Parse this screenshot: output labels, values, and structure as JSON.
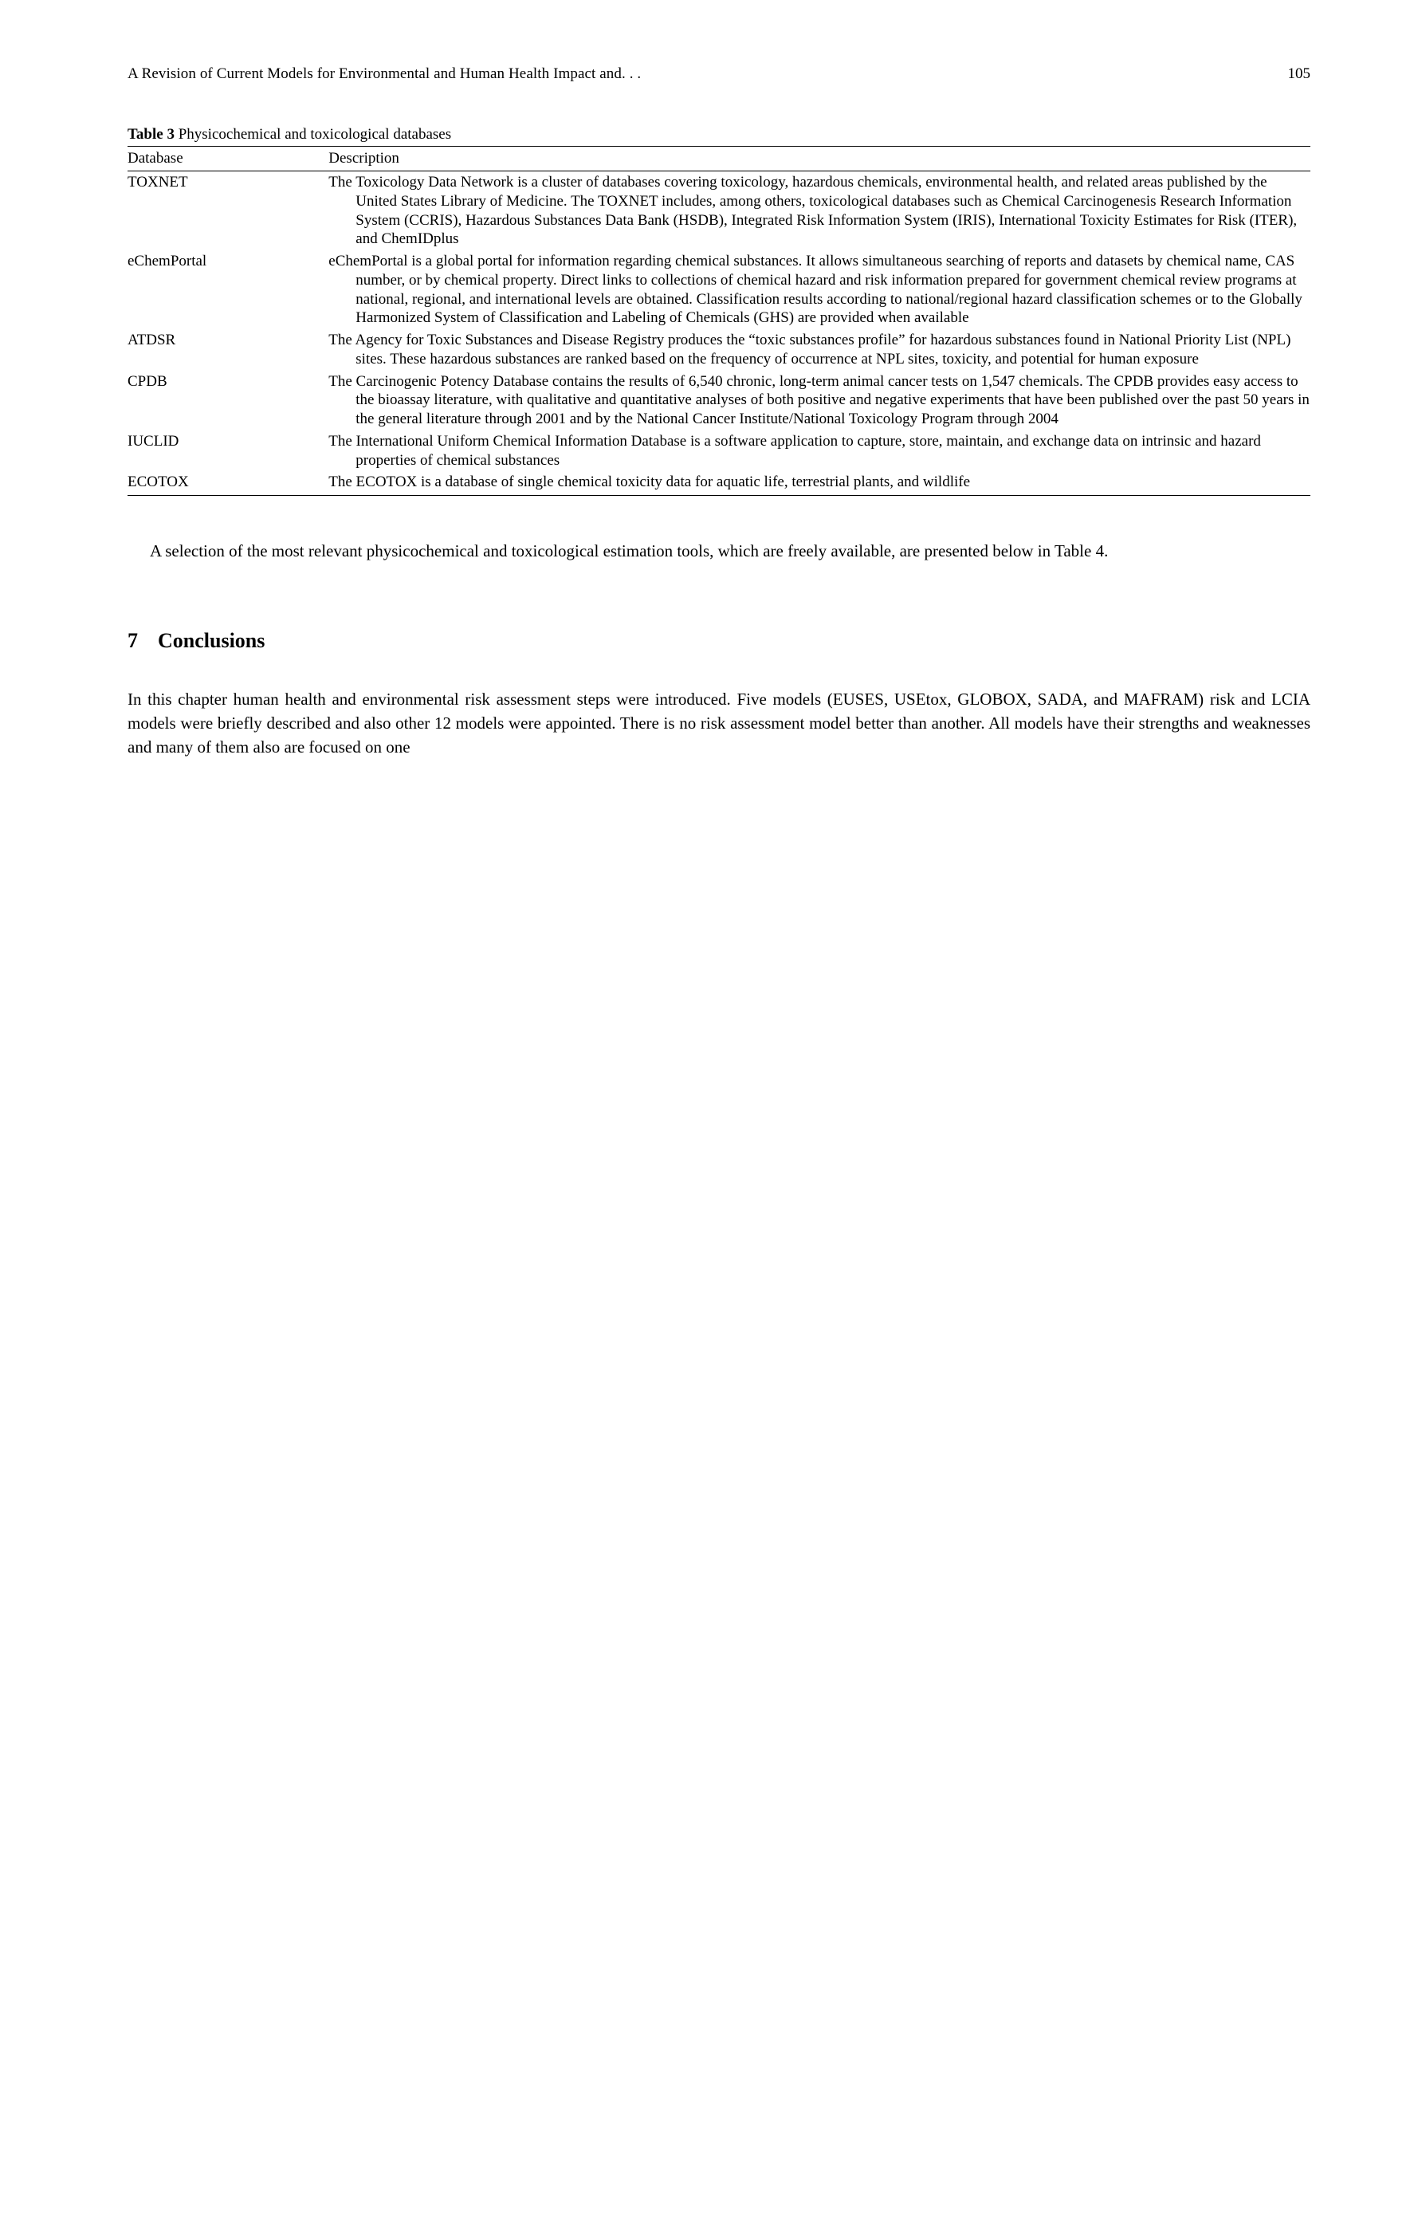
{
  "running_head": {
    "title": "A Revision of Current Models for Environmental and Human Health Impact and. . .",
    "page_number": "105"
  },
  "table3": {
    "label": "Table 3",
    "caption": "Physicochemical and toxicological databases",
    "columns": [
      "Database",
      "Description"
    ],
    "rows": [
      {
        "database": "TOXNET",
        "description": "The Toxicology Data Network is a cluster of databases covering toxicology, hazardous chemicals, environmental health, and related areas published by the United States Library of Medicine. The TOXNET includes, among others, toxicological databases such as Chemical Carcinogenesis Research Information System (CCRIS), Hazardous Substances Data Bank (HSDB), Integrated Risk Information System (IRIS), International Toxicity Estimates for Risk (ITER), and ChemIDplus"
      },
      {
        "database": "eChemPortal",
        "description": "eChemPortal is a global portal for information regarding chemical substances. It allows simultaneous searching of reports and datasets by chemical name, CAS number, or by chemical property. Direct links to collections of chemical hazard and risk information prepared for government chemical review programs at national, regional, and international levels are obtained. Classification results according to national/regional hazard classification schemes or to the Globally Harmonized System of Classification and Labeling of Chemicals (GHS) are provided when available"
      },
      {
        "database": "ATDSR",
        "description": "The Agency for Toxic Substances and Disease Registry produces the “toxic substances profile” for hazardous substances found in National Priority List (NPL) sites. These hazardous substances are ranked based on the frequency of occurrence at NPL sites, toxicity, and potential for human exposure"
      },
      {
        "database": "CPDB",
        "description": "The Carcinogenic Potency Database contains the results of 6,540 chronic, long-term animal cancer tests on 1,547 chemicals. The CPDB provides easy access to the bioassay literature, with qualitative and quantitative analyses of both positive and negative experiments that have been published over the past 50 years in the general literature through 2001 and by the National Cancer Institute/National Toxicology Program through 2004"
      },
      {
        "database": "IUCLID",
        "description": "The International Uniform Chemical Information Database is a software application to capture, store, maintain, and exchange data on intrinsic and hazard properties of chemical substances"
      },
      {
        "database": "ECOTOX",
        "description": "The ECOTOX is a database of single chemical toxicity data for aquatic life, terrestrial plants, and wildlife"
      }
    ]
  },
  "paragraph_after_table": "A selection of the most relevant physicochemical and toxicological estimation tools, which are freely available, are presented below in Table 4.",
  "section7": {
    "number": "7",
    "title": "Conclusions",
    "body": "In this chapter human health and environmental risk assessment steps were introduced. Five models (EUSES, USEtox, GLOBOX, SADA, and MAFRAM) risk and LCIA models were briefly described and also other 12 models were appointed. There is no risk assessment model better than another. All models have their strengths and weaknesses and many of them also are focused on one"
  }
}
